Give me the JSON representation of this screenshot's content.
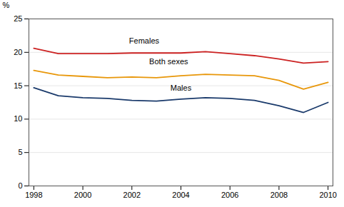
{
  "chart_data": {
    "type": "line",
    "x": [
      1998,
      1999,
      2000,
      2001,
      2002,
      2003,
      2004,
      2005,
      2006,
      2007,
      2008,
      2009,
      2010
    ],
    "series": [
      {
        "name": "Females",
        "color": "#cc2222",
        "values": [
          20.6,
          19.8,
          19.8,
          19.8,
          19.9,
          19.9,
          19.9,
          20.1,
          19.8,
          19.5,
          19.0,
          18.4,
          18.6
        ]
      },
      {
        "name": "Both sexes",
        "color": "#e8970a",
        "values": [
          17.3,
          16.6,
          16.4,
          16.2,
          16.3,
          16.2,
          16.5,
          16.7,
          16.6,
          16.5,
          15.8,
          14.5,
          15.5
        ]
      },
      {
        "name": "Males",
        "color": "#1a3a6b",
        "values": [
          14.7,
          13.5,
          13.2,
          13.1,
          12.8,
          12.7,
          13.0,
          13.2,
          13.1,
          12.8,
          12.0,
          11.0,
          12.5
        ]
      }
    ],
    "xlim": [
      1997.8,
      2010.2
    ],
    "xticks": [
      1998,
      2000,
      2002,
      2004,
      2006,
      2008,
      2010
    ],
    "ylim": [
      0,
      25
    ],
    "yticks": [
      0,
      5,
      10,
      15,
      20,
      25
    ],
    "ylabel": "%",
    "grid": true,
    "annotations": [
      {
        "text": "Females",
        "x": 2002.5,
        "y": 21.3
      },
      {
        "text": "Both sexes",
        "x": 2003.5,
        "y": 18.2
      },
      {
        "text": "Males",
        "x": 2004.0,
        "y": 14.2
      }
    ]
  }
}
